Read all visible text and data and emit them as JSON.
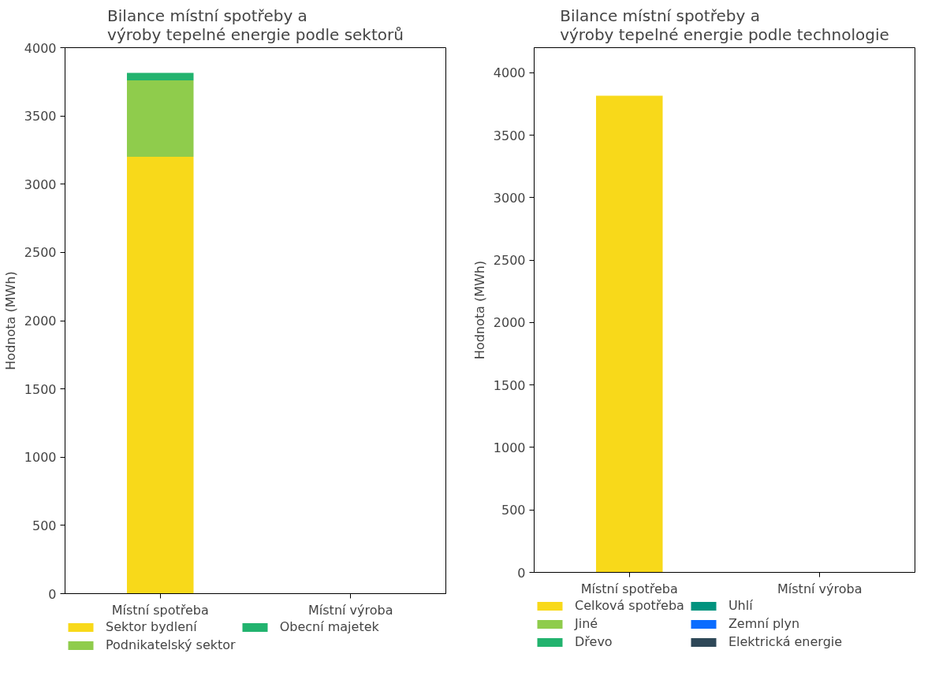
{
  "chart_data": [
    {
      "type": "bar",
      "title": "Bilance místní spotřeby a\nvýroby tepelné energie podle sektorů",
      "ylabel": "Hodnota (MWh)",
      "categories": [
        "Místní spotřeba",
        "Místní výroba"
      ],
      "stacked": true,
      "ylim": [
        0,
        4000
      ],
      "yticks": [
        0,
        500,
        1000,
        1500,
        2000,
        2500,
        3000,
        3500,
        4000
      ],
      "grid": false,
      "legend": "bottom",
      "series": [
        {
          "name": "Sektor bydlení",
          "color": "#f8d91a",
          "values": [
            3200,
            0
          ]
        },
        {
          "name": "Podnikatelský sektor",
          "color": "#8fcc4c",
          "values": [
            560,
            0
          ]
        },
        {
          "name": "Obecní majetek",
          "color": "#22b36e",
          "values": [
            55,
            0
          ]
        }
      ]
    },
    {
      "type": "bar",
      "title": "Bilance místní spotřeby a\nvýroby tepelné energie podle technologie",
      "ylabel": "Hodnota (MWh)",
      "categories": [
        "Místní spotřeba",
        "Místní výroba"
      ],
      "stacked": true,
      "ylim": [
        0,
        4200
      ],
      "yticks": [
        0,
        500,
        1000,
        1500,
        2000,
        2500,
        3000,
        3500,
        4000
      ],
      "grid": false,
      "legend": "bottom",
      "series": [
        {
          "name": "Celková spotřeba",
          "color": "#f8d91a",
          "values": [
            3815,
            0
          ]
        },
        {
          "name": "Jiné",
          "color": "#8fcc4c",
          "values": [
            0,
            0
          ]
        },
        {
          "name": "Dřevo",
          "color": "#22b36e",
          "values": [
            0,
            0
          ]
        },
        {
          "name": "Uhlí",
          "color": "#00937e",
          "values": [
            0,
            0
          ]
        },
        {
          "name": "Zemní plyn",
          "color": "#0a6cff",
          "values": [
            0,
            0
          ]
        },
        {
          "name": "Elektrická energie",
          "color": "#2e4858",
          "values": [
            0,
            0
          ]
        }
      ]
    }
  ]
}
